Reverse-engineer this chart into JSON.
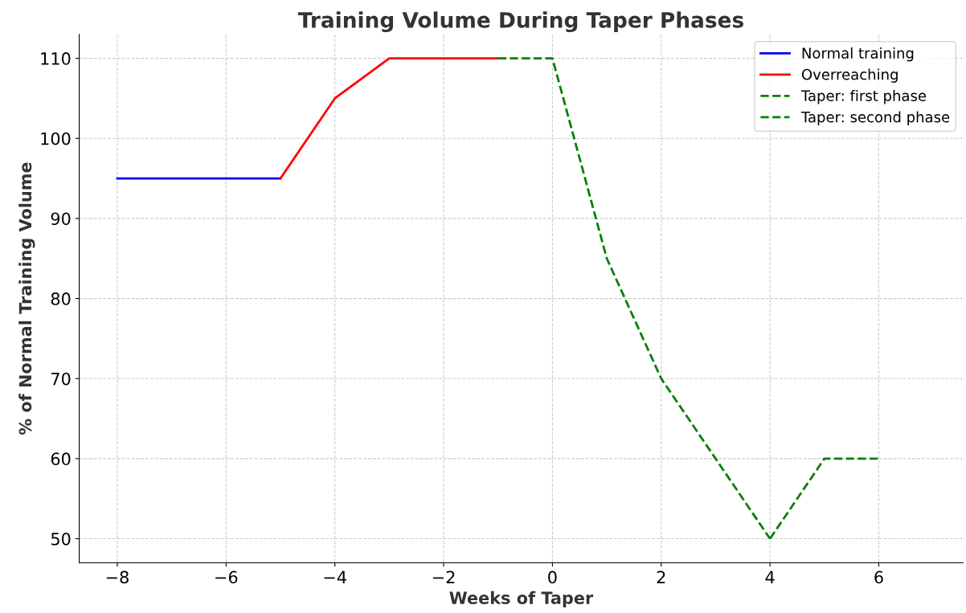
{
  "chart_data": {
    "type": "line",
    "title": "Training Volume During Taper Phases",
    "xlabel": "Weeks of Taper",
    "ylabel": "% of Normal Training Volume",
    "series": [
      {
        "name": "Normal training",
        "color": "#0000ff",
        "line_style": "solid",
        "x": [
          -8,
          -7,
          -6,
          -5
        ],
        "values": [
          95,
          95,
          95,
          95
        ]
      },
      {
        "name": "Overreaching",
        "color": "#ff0000",
        "line_style": "solid",
        "x": [
          -5,
          -4,
          -3,
          -2,
          -1
        ],
        "values": [
          95,
          105,
          110,
          110,
          110
        ]
      },
      {
        "name": "Taper: first phase",
        "color": "#008000",
        "line_style": "dashed",
        "x": [
          -1,
          0,
          1,
          2,
          3,
          4
        ],
        "values": [
          110,
          110,
          85,
          70,
          60,
          50
        ]
      },
      {
        "name": "Taper: second phase",
        "color": "#008000",
        "line_style": "dashed",
        "x": [
          4,
          5,
          6
        ],
        "values": [
          50,
          60,
          60
        ]
      }
    ],
    "xlim": [
      -8.7,
      7.55
    ],
    "ylim": [
      47,
      113
    ],
    "xticks": [
      {
        "value": -8,
        "label": "−8"
      },
      {
        "value": -6,
        "label": "−6"
      },
      {
        "value": -4,
        "label": "−4"
      },
      {
        "value": -2,
        "label": "−2"
      },
      0,
      2,
      4,
      6
    ],
    "yticks": [
      50,
      60,
      70,
      80,
      90,
      100,
      110
    ],
    "grid": true,
    "legend": "top right"
  }
}
